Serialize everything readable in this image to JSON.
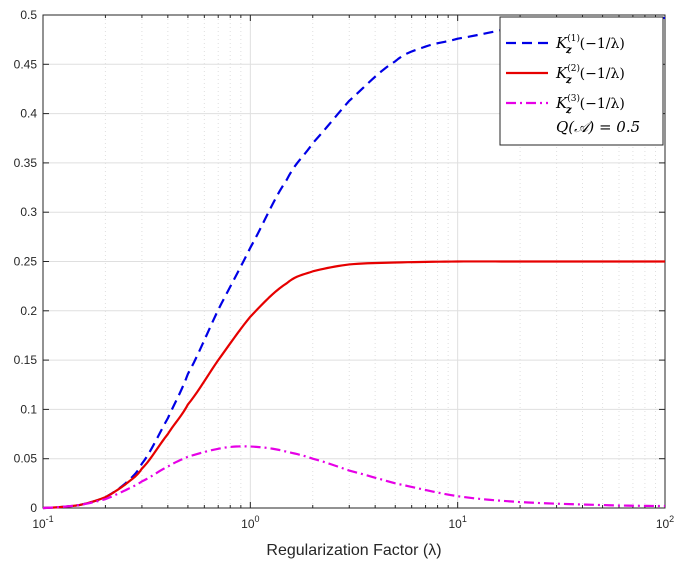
{
  "chart_data": {
    "type": "line",
    "xlabel": "Regularization Factor (λ)",
    "xscale": "log",
    "xlim": [
      0.1,
      100
    ],
    "ylim": [
      0,
      0.5
    ],
    "grid": "on",
    "legend_position": "top-right",
    "x_ticks": [
      {
        "base": "10",
        "exp": "-1",
        "value": 0.1
      },
      {
        "base": "10",
        "exp": "0",
        "value": 1
      },
      {
        "base": "10",
        "exp": "1",
        "value": 10
      },
      {
        "base": "10",
        "exp": "2",
        "value": 100
      }
    ],
    "y_ticks": [
      {
        "label": "0",
        "value": 0
      },
      {
        "label": "0.05",
        "value": 0.05
      },
      {
        "label": "0.1",
        "value": 0.1
      },
      {
        "label": "0.15",
        "value": 0.15
      },
      {
        "label": "0.2",
        "value": 0.2
      },
      {
        "label": "0.25",
        "value": 0.25
      },
      {
        "label": "0.3",
        "value": 0.3
      },
      {
        "label": "0.35",
        "value": 0.35
      },
      {
        "label": "0.4",
        "value": 0.4
      },
      {
        "label": "0.45",
        "value": 0.45
      },
      {
        "label": "0.5",
        "value": 0.5
      }
    ],
    "series": [
      {
        "name": "K_z^(1) (−1/λ)",
        "style": "dashed",
        "color": "#0000e6",
        "x": [
          0.1,
          0.15,
          0.2,
          0.25,
          0.3,
          0.4,
          0.5,
          0.7,
          1,
          1.5,
          2,
          3,
          5,
          7,
          10,
          20,
          50,
          100
        ],
        "y": [
          0.0,
          0.003,
          0.011,
          0.025,
          0.045,
          0.091,
          0.136,
          0.201,
          0.264,
          0.333,
          0.37,
          0.413,
          0.453,
          0.468,
          0.476,
          0.488,
          0.495,
          0.497
        ]
      },
      {
        "name": "K_z^(2) (−1/λ)",
        "style": "solid",
        "color": "#e60000",
        "x": [
          0.1,
          0.15,
          0.2,
          0.25,
          0.3,
          0.4,
          0.5,
          0.7,
          1,
          1.5,
          2,
          3,
          5,
          10,
          20,
          50,
          100
        ],
        "y": [
          0.0,
          0.003,
          0.011,
          0.024,
          0.04,
          0.075,
          0.105,
          0.15,
          0.194,
          0.228,
          0.24,
          0.247,
          0.249,
          0.25,
          0.25,
          0.25,
          0.25
        ]
      },
      {
        "name": "K_z^(3) (−1/λ)",
        "style": "dash-dot",
        "color": "#e600e6",
        "x": [
          0.1,
          0.15,
          0.2,
          0.25,
          0.3,
          0.4,
          0.5,
          0.7,
          0.9,
          1.2,
          1.5,
          2,
          3,
          5,
          10,
          20,
          50,
          100
        ],
        "y": [
          0.0,
          0.003,
          0.009,
          0.018,
          0.027,
          0.042,
          0.052,
          0.06,
          0.0625,
          0.061,
          0.057,
          0.05,
          0.038,
          0.025,
          0.012,
          0.006,
          0.003,
          0.002
        ]
      }
    ],
    "legend": {
      "entries": [
        {
          "K": "K",
          "sub": "z",
          "sup": "(1)",
          "arg": "(−1/λ)"
        },
        {
          "K": "K",
          "sub": "z",
          "sup": "(2)",
          "arg": "(−1/λ)"
        },
        {
          "K": "K",
          "sub": "z",
          "sup": "(3)",
          "arg": "(−1/λ)"
        }
      ],
      "note": "Q(𝒜) = 0.5"
    }
  },
  "colors": {
    "axis": "#262626",
    "grid": "#dfdfdf"
  }
}
